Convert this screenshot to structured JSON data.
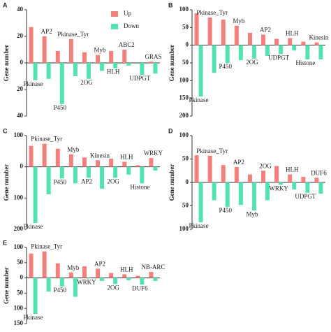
{
  "chart_data": [
    {
      "type": "bar",
      "label": "A",
      "ylabel": "Gene number",
      "categories": [
        "Pkinase",
        "AP2",
        "P450",
        "Pkinase_Tyr",
        "2OG",
        "Myb",
        "HLH",
        "ABC2",
        "UDPGT",
        "GRAS"
      ],
      "series": [
        {
          "name": "Up",
          "color": "#f2807c",
          "values": [
            27,
            20,
            9,
            18,
            8,
            6,
            9,
            10,
            0,
            1
          ]
        },
        {
          "name": "Down",
          "color": "#52e3b1",
          "values": [
            -13,
            -12,
            -31,
            -10,
            -12,
            -6,
            -4,
            -2,
            -9,
            -8
          ]
        }
      ],
      "ylim": [
        -40,
        40
      ],
      "yticks": [
        40,
        20,
        0,
        {
          "value": -20,
          "label": "20"
        },
        {
          "value": -40,
          "label": "40"
        }
      ],
      "legend": "upper right"
    },
    {
      "type": "bar",
      "label": "B",
      "ylabel": "Gene number",
      "categories": [
        "Pkinase",
        "Pkinase_Tyr",
        "P450",
        "Myb",
        "2OG",
        "AP2",
        "UDPGT",
        "HLH",
        "Histone",
        "Kinesin"
      ],
      "series": [
        {
          "color": "#f2807c",
          "values": [
            90,
            78,
            72,
            55,
            35,
            30,
            18,
            20,
            10,
            8
          ]
        },
        {
          "color": "#52e3b1",
          "values": [
            -145,
            -78,
            -50,
            -42,
            -38,
            -30,
            -25,
            -15,
            -40,
            -40
          ]
        }
      ],
      "ylim": [
        -200,
        100
      ],
      "yticks": [
        100,
        50,
        0,
        {
          "value": -50,
          "label": "50"
        },
        {
          "value": -100,
          "label": "100"
        },
        {
          "value": -150,
          "label": "150"
        },
        {
          "value": -200,
          "label": "200"
        }
      ]
    },
    {
      "type": "bar",
      "label": "C",
      "ylabel": "Gene number",
      "categories": [
        "Pkinase",
        "Pkinase_Tyr",
        "P450",
        "Myb",
        "AP2",
        "Kinesin",
        "2OG",
        "HLH",
        "Histone",
        "WRKY"
      ],
      "series": [
        {
          "color": "#f2807c",
          "values": [
            67,
            74,
            58,
            40,
            30,
            21,
            26,
            16,
            5,
            28
          ]
        },
        {
          "color": "#52e3b1",
          "values": [
            -180,
            -88,
            -37,
            -53,
            -35,
            -70,
            -35,
            -25,
            -53,
            -12
          ]
        }
      ],
      "ylim": [
        -200,
        100
      ],
      "yticks": [
        100,
        0,
        {
          "value": -100,
          "label": "100"
        },
        {
          "value": -200,
          "label": "200"
        }
      ]
    },
    {
      "type": "bar",
      "label": "D",
      "ylabel": "Gene number",
      "categories": [
        "Pkinase",
        "Pkinase_Tyr",
        "P450",
        "AP2",
        "Myb",
        "2OG",
        "WRKY",
        "HLH",
        "UDPGT",
        "DUF6"
      ],
      "series": [
        {
          "color": "#f2807c",
          "values": [
            58,
            57,
            37,
            33,
            17,
            25,
            35,
            17,
            12,
            10
          ]
        },
        {
          "color": "#52e3b1",
          "values": [
            -85,
            -38,
            -52,
            -48,
            -60,
            -38,
            -5,
            -15,
            -22,
            -24
          ]
        }
      ],
      "ylim": [
        -100,
        100
      ],
      "yticks": [
        100,
        50,
        0,
        {
          "value": -50,
          "label": "50"
        },
        {
          "value": -100,
          "label": "100"
        }
      ]
    },
    {
      "type": "bar",
      "label": "E",
      "ylabel": "Gene number",
      "categories": [
        "Pkinase",
        "Pkinase_Tyr",
        "P450",
        "Myb",
        "WRKY",
        "AP2",
        "2OG",
        "HLH",
        "DUF6",
        "NB-ARC"
      ],
      "series": [
        {
          "color": "#f2807c",
          "values": [
            80,
            87,
            48,
            18,
            38,
            30,
            16,
            12,
            7,
            20
          ]
        },
        {
          "color": "#52e3b1",
          "values": [
            -118,
            -45,
            -28,
            -62,
            -2,
            -10,
            -20,
            -8,
            -22,
            -10
          ]
        }
      ],
      "ylim": [
        -150,
        100
      ],
      "yticks": [
        100,
        50,
        0,
        {
          "value": -50,
          "label": "50"
        },
        {
          "value": -100,
          "label": "100"
        },
        {
          "value": -150,
          "label": "150"
        }
      ]
    }
  ]
}
